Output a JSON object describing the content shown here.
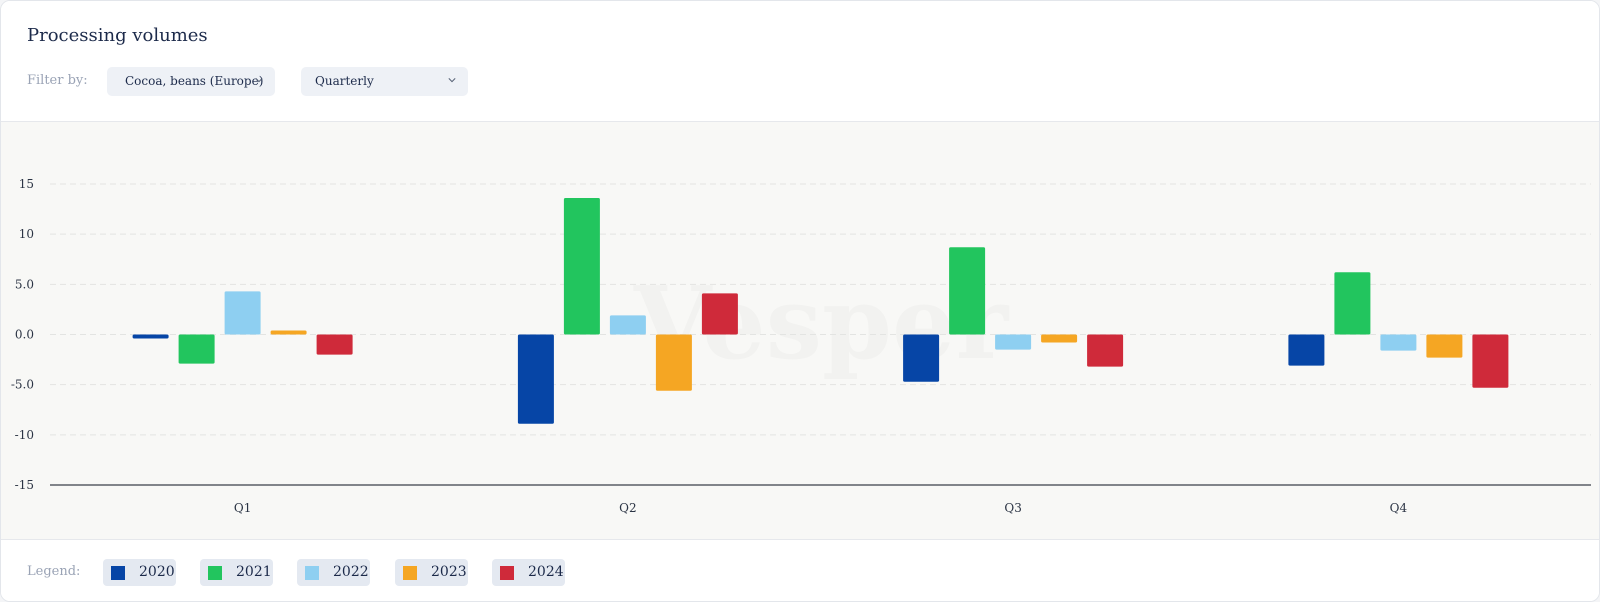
{
  "header": {
    "title": "Processing volumes",
    "filter_label": "Filter by:",
    "commodity_select": "Cocoa, beans (Europe)",
    "period_select": "Quarterly"
  },
  "legend": {
    "label": "Legend:",
    "items": [
      {
        "label": "2020",
        "color": "#0645a6"
      },
      {
        "label": "2021",
        "color": "#22c55e"
      },
      {
        "label": "2022",
        "color": "#8ecff1"
      },
      {
        "label": "2023",
        "color": "#f5a623"
      },
      {
        "label": "2024",
        "color": "#cf2a3a"
      }
    ]
  },
  "watermark": "Vesper",
  "chart_data": {
    "type": "bar",
    "categories": [
      "Q1",
      "Q2",
      "Q3",
      "Q4"
    ],
    "ylim": [
      -15,
      15
    ],
    "yticks": [
      "15",
      "10",
      "5.0",
      "0.0",
      "-5.0",
      "-10",
      "-15"
    ],
    "ytick_values": [
      15,
      10,
      5,
      0,
      -5,
      -10,
      -15
    ],
    "grid": true,
    "series": [
      {
        "name": "2020",
        "color": "#0645a6",
        "values": [
          -0.4,
          -8.9,
          -4.7,
          -3.1
        ]
      },
      {
        "name": "2021",
        "color": "#22c55e",
        "values": [
          -2.9,
          13.6,
          8.7,
          6.2
        ]
      },
      {
        "name": "2022",
        "color": "#8ecff1",
        "values": [
          4.3,
          1.9,
          -1.5,
          -1.6
        ]
      },
      {
        "name": "2023",
        "color": "#f5a623",
        "values": [
          0.4,
          -5.6,
          -0.8,
          -2.3
        ]
      },
      {
        "name": "2024",
        "color": "#cf2a3a",
        "values": [
          -2.0,
          4.1,
          -3.2,
          -5.3
        ]
      }
    ]
  }
}
